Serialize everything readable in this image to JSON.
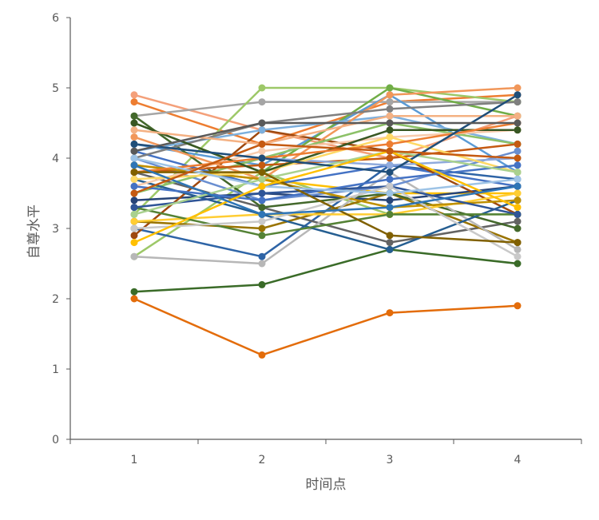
{
  "chart_data": {
    "type": "line",
    "title": "",
    "xlabel": "时间点",
    "ylabel": "自尊水平",
    "categories": [
      "1",
      "2",
      "3",
      "4"
    ],
    "ylim": [
      0,
      6
    ],
    "yticks": [
      0,
      1,
      2,
      3,
      4,
      5,
      6
    ],
    "grid": false,
    "legend": "none",
    "series": [
      {
        "color": "#E36C0A",
        "values": [
          2.0,
          1.2,
          1.8,
          1.9
        ]
      },
      {
        "color": "#3A6B28",
        "values": [
          2.1,
          2.2,
          2.7,
          2.5
        ]
      },
      {
        "color": "#9DC868",
        "values": [
          2.6,
          3.8,
          3.2,
          3.2
        ]
      },
      {
        "color": "#2E64A6",
        "values": [
          3.0,
          2.6,
          3.9,
          3.7
        ]
      },
      {
        "color": "#F4A07A",
        "values": [
          4.9,
          4.4,
          4.0,
          4.6
        ]
      },
      {
        "color": "#ED7D31",
        "values": [
          4.8,
          4.2,
          4.8,
          4.9
        ]
      },
      {
        "color": "#FFC000",
        "values": [
          3.9,
          3.7,
          3.5,
          3.5
        ]
      },
      {
        "color": "#A5A5A5",
        "values": [
          4.6,
          4.8,
          4.8,
          4.8
        ]
      },
      {
        "color": "#9DC868",
        "values": [
          3.2,
          5.0,
          5.0,
          4.8
        ]
      },
      {
        "color": "#4472C4",
        "values": [
          4.1,
          3.6,
          3.9,
          3.6
        ]
      },
      {
        "color": "#5B9BD5",
        "values": [
          4.2,
          3.9,
          4.9,
          3.8
        ]
      },
      {
        "color": "#70AD47",
        "values": [
          4.5,
          3.8,
          5.0,
          4.6
        ]
      },
      {
        "color": "#264478",
        "values": [
          3.4,
          3.5,
          3.4,
          3.6
        ]
      },
      {
        "color": "#9E480E",
        "values": [
          2.9,
          4.4,
          4.1,
          3.2
        ]
      },
      {
        "color": "#636363",
        "values": [
          3.8,
          3.3,
          2.8,
          3.1
        ]
      },
      {
        "color": "#997300",
        "values": [
          3.1,
          3.0,
          3.5,
          2.8
        ]
      },
      {
        "color": "#43682B",
        "values": [
          4.6,
          3.3,
          3.5,
          3.0
        ]
      },
      {
        "color": "#7CAFDD",
        "values": [
          4.1,
          4.4,
          4.6,
          4.2
        ]
      },
      {
        "color": "#F1975A",
        "values": [
          4.3,
          3.7,
          4.9,
          5.0
        ]
      },
      {
        "color": "#B7B7B7",
        "values": [
          2.6,
          2.5,
          3.8,
          2.7
        ]
      },
      {
        "color": "#FFCD33",
        "values": [
          3.1,
          3.2,
          3.2,
          3.5
        ]
      },
      {
        "color": "#698ED0",
        "values": [
          4.0,
          3.4,
          3.6,
          4.1
        ]
      },
      {
        "color": "#8CC168",
        "values": [
          3.5,
          4.0,
          4.5,
          4.2
        ]
      },
      {
        "color": "#255E91",
        "values": [
          3.7,
          3.2,
          2.7,
          3.4
        ]
      },
      {
        "color": "#C55A11",
        "values": [
          3.8,
          3.9,
          4.0,
          4.2
        ]
      },
      {
        "color": "#7F7F7F",
        "values": [
          4.0,
          4.5,
          4.7,
          4.8
        ]
      },
      {
        "color": "#BF9000",
        "values": [
          3.9,
          3.7,
          3.3,
          3.4
        ]
      },
      {
        "color": "#548235",
        "values": [
          3.3,
          2.9,
          3.2,
          3.2
        ]
      },
      {
        "color": "#8FAADC",
        "values": [
          4.2,
          4.0,
          3.9,
          4.0
        ]
      },
      {
        "color": "#F8CBAD",
        "values": [
          3.6,
          4.1,
          4.3,
          4.4
        ]
      },
      {
        "color": "#2F5597",
        "values": [
          3.3,
          3.5,
          3.6,
          3.2
        ]
      },
      {
        "color": "#FFD966",
        "values": [
          3.7,
          3.8,
          4.3,
          3.8
        ]
      },
      {
        "color": "#C9C9C9",
        "values": [
          3.0,
          3.1,
          3.6,
          2.6
        ]
      },
      {
        "color": "#385723",
        "values": [
          4.5,
          3.8,
          4.4,
          4.4
        ]
      },
      {
        "color": "#F4B183",
        "values": [
          4.4,
          4.2,
          4.6,
          4.6
        ]
      },
      {
        "color": "#4472C4",
        "values": [
          3.6,
          3.4,
          3.7,
          3.9
        ]
      },
      {
        "color": "#ED7D31",
        "values": [
          3.8,
          4.0,
          4.2,
          4.5
        ]
      },
      {
        "color": "#A9D18E",
        "values": [
          3.2,
          3.7,
          4.1,
          3.8
        ]
      },
      {
        "color": "#1F4E79",
        "values": [
          4.2,
          4.0,
          3.8,
          4.9
        ]
      },
      {
        "color": "#806000",
        "values": [
          3.8,
          3.8,
          2.9,
          2.8
        ]
      },
      {
        "color": "#9DC3E6",
        "values": [
          4.0,
          3.6,
          3.5,
          3.7
        ]
      },
      {
        "color": "#FFC000",
        "values": [
          2.8,
          3.6,
          4.1,
          3.3
        ]
      },
      {
        "color": "#2E75B6",
        "values": [
          3.9,
          3.2,
          3.3,
          3.6
        ]
      },
      {
        "color": "#595959",
        "values": [
          4.1,
          4.5,
          4.5,
          4.5
        ]
      },
      {
        "color": "#C55A11",
        "values": [
          3.5,
          4.2,
          4.1,
          4.0
        ]
      }
    ]
  }
}
